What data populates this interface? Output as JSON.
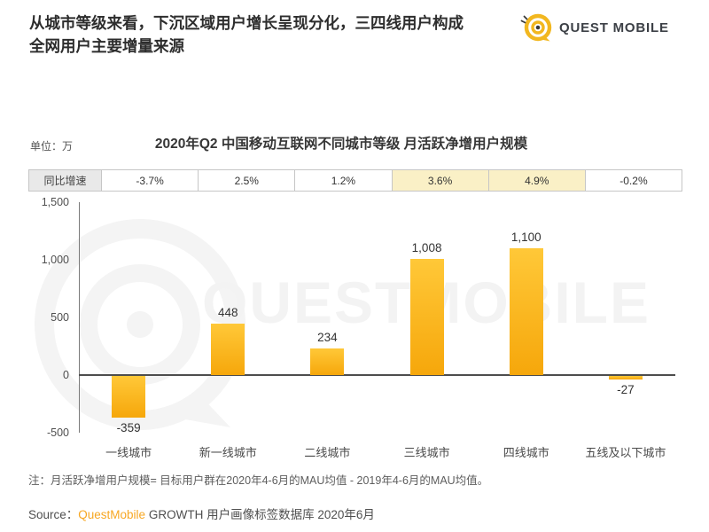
{
  "header": {
    "line1": "从城市等级来看，下沉区域用户增长呈现分化，三四线用户构成",
    "line2": "全网用户主要增量来源"
  },
  "logo": {
    "text": "QUEST MOBILE",
    "icon": "questmobile-swirl-icon",
    "accent_color": "#F2B71F"
  },
  "chart": {
    "unit_label": "单位：万",
    "growth_row_label": "同比增速"
  },
  "chart_data": {
    "type": "bar",
    "title": "2020年Q2 中国移动互联网不同城市等级 月活跃净增用户规模",
    "unit": "万",
    "categories": [
      "一线城市",
      "新一线城市",
      "二线城市",
      "三线城市",
      "四线城市",
      "五线及以下城市"
    ],
    "values": [
      -359,
      448,
      234,
      1008,
      1100,
      -27
    ],
    "value_labels": [
      "-359",
      "448",
      "234",
      "1,008",
      "1,100",
      "-27"
    ],
    "yoy_series_name": "同比增速",
    "yoy_values": [
      "-3.7%",
      "2.5%",
      "1.2%",
      "3.6%",
      "4.9%",
      "-0.2%"
    ],
    "yoy_highlighted": [
      false,
      false,
      false,
      true,
      true,
      false
    ],
    "ylim": [
      -500,
      1500
    ],
    "yticks": [
      1500,
      1000,
      500,
      0,
      -500
    ],
    "ytick_labels": [
      "1,500",
      "1,000",
      "500",
      "0",
      "-500"
    ],
    "grid": false,
    "legend": "none",
    "bar_color_top": "#FFC838",
    "bar_color_bottom": "#F6A70B",
    "highlight_color": "#FAF0C6"
  },
  "watermark": {
    "text": "QUESTMOBILE"
  },
  "note": "注：月活跃净增用户规模= 目标用户群在2020年4-6月的MAU均值 - 2019年4-6月的MAU均值。",
  "source": {
    "prefix": "Source：",
    "brand": "QuestMobile",
    "suffix": " GROWTH 用户画像标签数据库 2020年6月"
  }
}
